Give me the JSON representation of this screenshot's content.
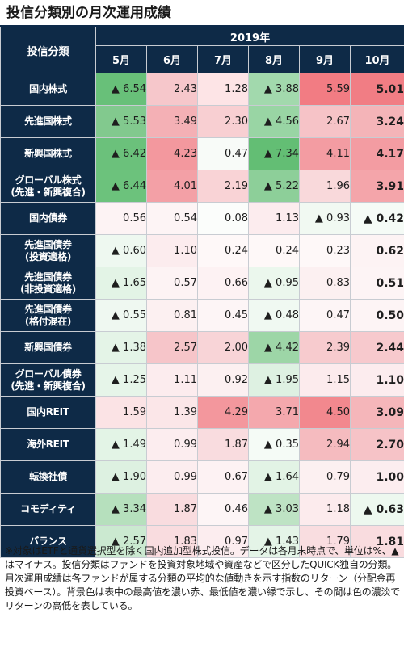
{
  "title": "投信分類別の月次運用成績",
  "table": {
    "corner_label": "投信分類",
    "year_label": "2019年",
    "months": [
      "5月",
      "6月",
      "7月",
      "8月",
      "9月",
      "10月"
    ],
    "rows": [
      {
        "category": [
          "国内株式"
        ],
        "values": [
          "▲ 6.54",
          "2.43",
          "1.28",
          "▲ 3.88",
          "5.59",
          "5.01"
        ],
        "colors": [
          "#68c079",
          "#f6c7cb",
          "#fde4e6",
          "#a2d9ad",
          "#f27c83",
          "#f17d84"
        ]
      },
      {
        "category": [
          "先進国株式"
        ],
        "values": [
          "▲ 5.53",
          "3.49",
          "2.30",
          "▲ 4.56",
          "2.67",
          "3.24"
        ],
        "colors": [
          "#82c98e",
          "#f4b0b5",
          "#f8cfd2",
          "#99d5a4",
          "#f6c3c7",
          "#f4b4b8"
        ]
      },
      {
        "category": [
          "新興国株式"
        ],
        "values": [
          "▲ 6.42",
          "4.23",
          "0.47",
          "▲ 7.34",
          "4.11",
          "4.17"
        ],
        "colors": [
          "#6bc17b",
          "#f3989e",
          "#f8fbf8",
          "#63be74",
          "#f39ca2",
          "#f39ca2"
        ]
      },
      {
        "category": [
          "グローバル株式",
          "(先進・新興複合)"
        ],
        "values": [
          "▲ 6.44",
          "4.01",
          "2.19",
          "▲ 5.22",
          "1.96",
          "3.91"
        ],
        "colors": [
          "#6cc27c",
          "#f3a0a6",
          "#f9d3d6",
          "#8dcf99",
          "#f9d9db",
          "#f4a5aa"
        ]
      },
      {
        "category": [
          "国内債券"
        ],
        "values": [
          "0.56",
          "0.54",
          "0.08",
          "1.13",
          "▲ 0.93",
          "▲ 0.42"
        ],
        "colors": [
          "#fdf3f4",
          "#fdf4f5",
          "#fbfdfb",
          "#fcecee",
          "#f1f9f2",
          "#f5fbf6"
        ]
      },
      {
        "category": [
          "先進国債券",
          "(投資適格)"
        ],
        "values": [
          "▲ 0.60",
          "1.10",
          "0.24",
          "0.24",
          "0.23",
          "0.62"
        ],
        "colors": [
          "#eef8f0",
          "#fcecee",
          "#fef8f8",
          "#fef8f8",
          "#fef8f8",
          "#fdf3f4"
        ]
      },
      {
        "category": [
          "先進国債券",
          "(非投資適格)"
        ],
        "values": [
          "▲ 1.65",
          "0.57",
          "0.66",
          "▲ 0.95",
          "0.83",
          "0.51"
        ],
        "colors": [
          "#e3f4e6",
          "#fdf3f4",
          "#fdf2f3",
          "#ebf7ed",
          "#fcf0f1",
          "#fdf4f5"
        ]
      },
      {
        "category": [
          "先進国債券",
          "(格付混在)"
        ],
        "values": [
          "▲ 0.55",
          "0.81",
          "0.45",
          "▲ 0.48",
          "0.47",
          "0.50"
        ],
        "colors": [
          "#eff8f1",
          "#fcf0f1",
          "#fdf5f6",
          "#f0f9f2",
          "#fdf5f6",
          "#fdf4f5"
        ]
      },
      {
        "category": [
          "新興国債券"
        ],
        "values": [
          "▲ 1.38",
          "2.57",
          "2.00",
          "▲ 4.42",
          "2.39",
          "2.44"
        ],
        "colors": [
          "#e4f4e7",
          "#f6c5c9",
          "#f8d4d7",
          "#9dd6a7",
          "#f7cbce",
          "#f7c9cd"
        ]
      },
      {
        "category": [
          "グローバル債券",
          "(先進・新興複合)"
        ],
        "values": [
          "▲ 1.25",
          "1.11",
          "0.92",
          "▲ 1.95",
          "1.15",
          "1.10"
        ],
        "colors": [
          "#e6f5e9",
          "#fcecee",
          "#fcf0f1",
          "#def1e2",
          "#fcebed",
          "#fcecee"
        ]
      },
      {
        "category": [
          "国内REIT"
        ],
        "values": [
          "1.59",
          "1.39",
          "4.29",
          "3.71",
          "4.50",
          "3.09"
        ],
        "colors": [
          "#fbe3e5",
          "#fbe6e8",
          "#f3979d",
          "#f4a8ad",
          "#f2888e",
          "#f5b6ba"
        ]
      },
      {
        "category": [
          "海外REIT"
        ],
        "values": [
          "▲ 1.49",
          "0.99",
          "1.87",
          "▲ 0.35",
          "2.94",
          "2.70"
        ],
        "colors": [
          "#e3f4e6",
          "#fcedef",
          "#f9dcdf",
          "#f5fbf6",
          "#f5bbbf",
          "#f6c3c7"
        ]
      },
      {
        "category": [
          "転換社債"
        ],
        "values": [
          "▲ 1.90",
          "0.99",
          "0.67",
          "▲ 1.64",
          "0.79",
          "1.00"
        ],
        "colors": [
          "#ddf1e1",
          "#fcedef",
          "#fdf2f3",
          "#e2f3e5",
          "#fcf0f1",
          "#fcedef"
        ]
      },
      {
        "category": [
          "コモディティ"
        ],
        "values": [
          "▲ 3.34",
          "1.87",
          "0.46",
          "▲ 3.03",
          "1.18",
          "▲ 0.63"
        ],
        "colors": [
          "#b6e0bd",
          "#f9dcdf",
          "#fdf5f6",
          "#bee3c4",
          "#fcebed",
          "#edf8ef"
        ]
      },
      {
        "category": [
          "バランス"
        ],
        "values": [
          "▲ 2.57",
          "1.83",
          "0.97",
          "▲ 1.43",
          "1.79",
          "1.81"
        ],
        "colors": [
          "#cbe9d0",
          "#f9dcdf",
          "#fcedef",
          "#e4f4e7",
          "#f9dde0",
          "#f9dcdf"
        ]
      }
    ]
  },
  "footnote": "※対象はETFと通貨選択型を除く国内追加型株式投信。データは各月末時点で、単位は%、▲はマイナス。投信分類はファンドを投資対象地域や資産などで区分したQUICK独自の分類。月次運用成績は各ファンドが属する分類の平均的な値動きを示す指数のリターン（分配金再投資ベース）。背景色は表中の最高値を濃い赤、最低値を濃い緑で示し、その間は色の濃淡でリターンの高低を表している。"
}
